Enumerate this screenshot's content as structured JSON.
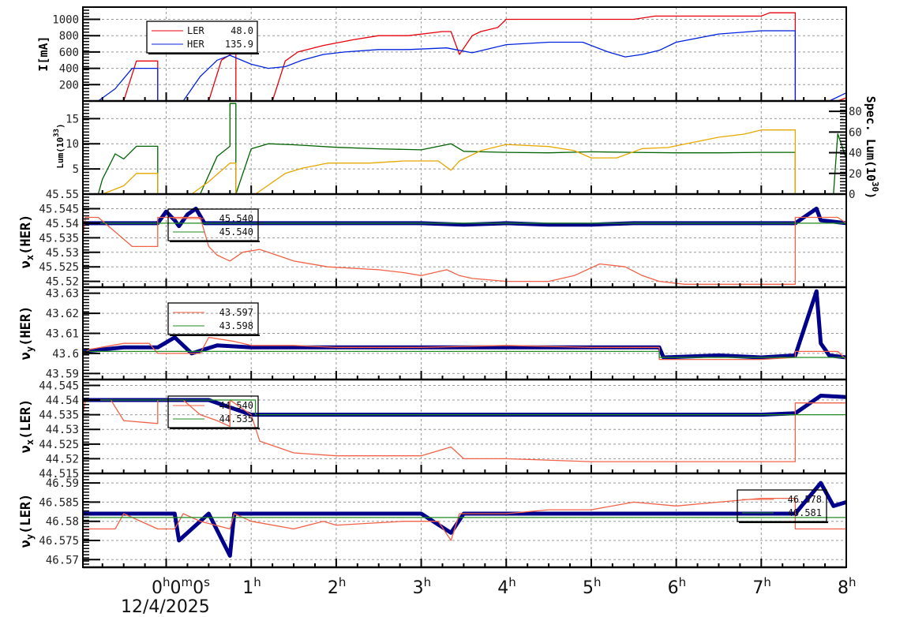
{
  "colors": {
    "ler": "#e8000b",
    "her": "#0022dd",
    "lum": "#006400",
    "spec_lum": "#e6a800",
    "tune_meas": "#00008b",
    "tune_set": "#f26247",
    "tune_ref": "#228b22",
    "grid": "#999999"
  },
  "x_axis": {
    "tick_labels": [
      "0h0m0s",
      "1h",
      "2h",
      "3h",
      "4h",
      "5h",
      "6h",
      "7h",
      "8h"
    ],
    "date_label": "12/4/2025",
    "range_hours": [
      -0.98,
      8.0
    ]
  },
  "chart_data": [
    {
      "type": "line",
      "panel": "current",
      "title": "",
      "xlabel": "time (h)",
      "ylabel": "I[mA]",
      "ylim": [
        0,
        1150
      ],
      "yticks": [
        200,
        400,
        600,
        800,
        1000
      ],
      "grid": true,
      "legend_position": "top-left",
      "legend": [
        {
          "name": "LER",
          "value": "48.0"
        },
        {
          "name": "HER",
          "value": "135.9"
        }
      ],
      "series": [
        {
          "name": "LER",
          "x": [
            -0.98,
            -0.95,
            -0.5,
            -0.35,
            -0.1,
            -0.1,
            0.5,
            0.65,
            0.8,
            0.82,
            0.82,
            1.25,
            1.4,
            1.55,
            1.85,
            2.2,
            2.5,
            2.85,
            3.25,
            3.35,
            3.45,
            3.6,
            3.7,
            3.9,
            4.0,
            4.5,
            5.0,
            5.5,
            5.75,
            5.9,
            6.0,
            6.2,
            6.3,
            6.5,
            7.0,
            7.1,
            7.4,
            7.4,
            7.9,
            8.0
          ],
          "values": [
            0,
            0,
            0,
            490,
            490,
            0,
            0,
            500,
            600,
            640,
            0,
            0,
            490,
            600,
            680,
            750,
            800,
            800,
            850,
            850,
            570,
            800,
            850,
            900,
            1000,
            1000,
            1000,
            1000,
            1040,
            1040,
            1040,
            1040,
            1040,
            1040,
            1040,
            1080,
            1080,
            0,
            0,
            40
          ]
        },
        {
          "name": "HER",
          "x": [
            -0.98,
            -0.8,
            -0.6,
            -0.4,
            -0.1,
            -0.1,
            0.2,
            0.4,
            0.6,
            0.75,
            1.0,
            1.2,
            1.4,
            1.6,
            1.85,
            2.1,
            2.5,
            2.85,
            3.3,
            3.4,
            3.6,
            3.8,
            4.0,
            4.5,
            4.9,
            5.2,
            5.4,
            5.6,
            5.8,
            6.0,
            6.4,
            6.5,
            7.0,
            7.4,
            7.4,
            7.8,
            8.0
          ],
          "values": [
            0,
            0,
            150,
            400,
            400,
            0,
            0,
            300,
            500,
            560,
            450,
            400,
            420,
            500,
            570,
            600,
            630,
            630,
            650,
            630,
            590,
            640,
            690,
            720,
            720,
            600,
            540,
            570,
            620,
            720,
            800,
            820,
            860,
            860,
            0,
            0,
            100
          ]
        }
      ]
    },
    {
      "type": "line",
      "panel": "luminosity",
      "ylabel": "Lum(10^33)",
      "ylim": [
        0,
        18.5
      ],
      "yticks": [
        5,
        10,
        15
      ],
      "y2label": "Spec. Lum(10^30)",
      "y2lim": [
        0,
        90
      ],
      "y2ticks": [
        0,
        20,
        40,
        60,
        80
      ],
      "grid": true,
      "series": [
        {
          "name": "Lum",
          "axis": "left",
          "x": [
            -0.98,
            -0.8,
            -0.75,
            -0.6,
            -0.5,
            -0.35,
            -0.1,
            -0.1,
            0.4,
            0.6,
            0.75,
            0.75,
            0.82,
            0.82,
            1.0,
            1.2,
            1.5,
            2.0,
            2.5,
            3.0,
            3.35,
            3.5,
            4.0,
            4.5,
            5.0,
            5.5,
            6.0,
            6.5,
            7.0,
            7.4,
            7.4,
            7.85,
            7.9,
            8.0
          ],
          "values": [
            0,
            0,
            3,
            8,
            7,
            9.5,
            9.5,
            0,
            0,
            7.5,
            9.5,
            18,
            18,
            0,
            9,
            10,
            9.8,
            9.3,
            9,
            8.8,
            10,
            8.5,
            8.3,
            8.2,
            8.4,
            8.3,
            8.2,
            8.2,
            8.3,
            8.3,
            0,
            0,
            12,
            7
          ]
        },
        {
          "name": "Spec. Lum",
          "axis": "right",
          "x": [
            -0.98,
            -0.75,
            -0.5,
            -0.35,
            -0.1,
            -0.1,
            0.3,
            0.5,
            0.75,
            0.82,
            0.82,
            1.05,
            1.4,
            1.6,
            1.9,
            2.4,
            2.8,
            3.2,
            3.35,
            3.45,
            3.7,
            4.0,
            4.5,
            4.8,
            5.0,
            5.3,
            5.6,
            5.9,
            6.2,
            6.5,
            6.8,
            7.0,
            7.4,
            7.4,
            8.0
          ],
          "values": [
            0,
            0,
            8,
            20,
            20,
            0,
            0,
            12,
            30,
            30,
            0,
            0,
            20,
            25,
            30,
            30,
            32,
            32,
            23,
            32,
            42,
            48,
            46,
            42,
            35,
            35,
            44,
            45,
            50,
            55,
            58,
            62,
            62,
            0,
            0
          ]
        }
      ]
    },
    {
      "type": "line",
      "panel": "nu_x_HER",
      "ylabel": "νx(HER)",
      "ylim": [
        45.518,
        45.55
      ],
      "yticks": [
        45.52,
        45.525,
        45.53,
        45.535,
        45.54,
        45.545,
        45.55
      ],
      "legend": [
        {
          "name": "set",
          "value": "45.540"
        },
        {
          "name": "ref",
          "value": "45.540"
        }
      ],
      "series": [
        {
          "name": "measured",
          "x": [
            -0.98,
            -0.1,
            0.0,
            0.1,
            0.15,
            0.25,
            0.35,
            0.45,
            1.0,
            2.0,
            3.0,
            3.5,
            4.0,
            4.5,
            5.0,
            5.5,
            6.0,
            6.5,
            7.0,
            7.4,
            7.65,
            7.7,
            7.85,
            8.0
          ],
          "values": [
            45.54,
            45.54,
            45.544,
            45.541,
            45.539,
            45.543,
            45.545,
            45.54,
            45.54,
            45.54,
            45.54,
            45.5395,
            45.54,
            45.5395,
            45.5395,
            45.54,
            45.54,
            45.54,
            45.54,
            45.54,
            45.545,
            45.541,
            45.5405,
            45.54
          ]
        },
        {
          "name": "set",
          "x": [
            -0.98,
            -0.95,
            -0.8,
            -0.6,
            -0.4,
            -0.1,
            -0.1,
            0.3,
            0.4,
            0.5,
            0.6,
            0.75,
            0.9,
            1.1,
            1.3,
            1.5,
            1.9,
            2.5,
            2.8,
            3.0,
            3.3,
            3.45,
            3.6,
            4.0,
            4.5,
            4.8,
            5.1,
            5.4,
            5.6,
            5.8,
            6.1,
            6.5,
            7.0,
            7.4,
            7.4,
            7.9,
            8.0
          ],
          "values": [
            45.535,
            45.542,
            45.542,
            45.537,
            45.532,
            45.532,
            45.542,
            45.542,
            45.542,
            45.532,
            45.529,
            45.527,
            45.53,
            45.531,
            45.529,
            45.527,
            45.525,
            45.524,
            45.523,
            45.522,
            45.524,
            45.522,
            45.521,
            45.52,
            45.52,
            45.522,
            45.526,
            45.525,
            45.522,
            45.52,
            45.519,
            45.519,
            45.519,
            45.519,
            45.542,
            45.542,
            45.54
          ]
        },
        {
          "name": "ref",
          "x": [
            -0.98,
            8.0
          ],
          "values": [
            45.54,
            45.54
          ]
        }
      ]
    },
    {
      "type": "line",
      "panel": "nu_y_HER",
      "ylabel": "νy(HER)",
      "ylim": [
        43.587,
        43.633
      ],
      "yticks": [
        43.59,
        43.6,
        43.61,
        43.62,
        43.63
      ],
      "legend": [
        {
          "name": "set",
          "value": "43.597"
        },
        {
          "name": "ref",
          "value": "43.598"
        }
      ],
      "series": [
        {
          "name": "measured",
          "x": [
            -0.98,
            -0.5,
            -0.1,
            0.1,
            0.3,
            0.6,
            1.0,
            2.0,
            3.0,
            3.5,
            4.0,
            4.5,
            5.0,
            5.5,
            5.8,
            5.85,
            6.5,
            7.0,
            7.4,
            7.65,
            7.7,
            7.8,
            8.0
          ],
          "values": [
            43.601,
            43.603,
            43.603,
            43.608,
            43.6,
            43.604,
            43.603,
            43.603,
            43.603,
            43.603,
            43.603,
            43.603,
            43.603,
            43.603,
            43.603,
            43.598,
            43.599,
            43.598,
            43.599,
            43.631,
            43.605,
            43.599,
            43.598
          ]
        },
        {
          "name": "set",
          "x": [
            -0.98,
            -0.9,
            -0.5,
            -0.2,
            -0.1,
            0.4,
            0.5,
            0.8,
            1.0,
            1.5,
            2.0,
            3.0,
            4.0,
            5.0,
            5.8,
            5.8,
            6.5,
            7.0,
            7.4,
            7.4,
            7.9,
            8.0
          ],
          "values": [
            43.6,
            43.602,
            43.605,
            43.605,
            43.6,
            43.6,
            43.608,
            43.606,
            43.604,
            43.604,
            43.603,
            43.603,
            43.604,
            43.603,
            43.603,
            43.597,
            43.597,
            43.597,
            43.598,
            43.601,
            43.601,
            43.597
          ]
        },
        {
          "name": "ref",
          "x": [
            -0.98,
            5.8,
            5.8,
            8.0
          ],
          "values": [
            43.601,
            43.601,
            43.598,
            43.598
          ]
        }
      ]
    },
    {
      "type": "line",
      "panel": "nu_x_LER",
      "ylabel": "νx(LER)",
      "ylim": [
        44.515,
        44.547
      ],
      "yticks": [
        44.515,
        44.52,
        44.525,
        44.53,
        44.535,
        44.54,
        44.545
      ],
      "legend": [
        {
          "name": "set",
          "value": "44.540"
        },
        {
          "name": "ref",
          "value": "44.535"
        }
      ],
      "series": [
        {
          "name": "measured",
          "x": [
            -0.98,
            -0.1,
            0.1,
            0.5,
            1.0,
            1.05,
            2.0,
            3.0,
            4.0,
            5.0,
            6.0,
            7.0,
            7.4,
            7.7,
            8.0
          ],
          "values": [
            44.54,
            44.54,
            44.54,
            44.54,
            44.535,
            44.535,
            44.535,
            44.535,
            44.535,
            44.535,
            44.535,
            44.535,
            44.5355,
            44.5415,
            44.541
          ]
        },
        {
          "name": "set",
          "x": [
            -0.98,
            -0.95,
            -0.65,
            -0.5,
            -0.1,
            -0.1,
            0.2,
            0.4,
            0.6,
            0.75,
            0.75,
            1.0,
            1.1,
            1.3,
            1.5,
            2.0,
            3.0,
            3.35,
            3.5,
            4.0,
            5.0,
            6.0,
            7.0,
            7.4,
            7.4,
            8.0
          ],
          "values": [
            44.535,
            44.54,
            44.54,
            44.533,
            44.532,
            44.54,
            44.54,
            44.535,
            44.533,
            44.531,
            44.54,
            44.535,
            44.526,
            44.524,
            44.522,
            44.521,
            44.521,
            44.524,
            44.52,
            44.52,
            44.519,
            44.519,
            44.519,
            44.519,
            44.539,
            44.539
          ]
        },
        {
          "name": "ref",
          "x": [
            -0.98,
            1.05,
            1.05,
            8.0
          ],
          "values": [
            44.54,
            44.54,
            44.535,
            44.535
          ]
        }
      ]
    },
    {
      "type": "line",
      "panel": "nu_y_LER",
      "ylabel": "νy(LER)",
      "ylim": [
        46.568,
        46.5925
      ],
      "yticks": [
        46.57,
        46.575,
        46.58,
        46.585,
        46.59
      ],
      "legend": [
        {
          "name": "set",
          "value": "46.578"
        },
        {
          "name": "ref",
          "value": "46.581"
        }
      ],
      "series": [
        {
          "name": "measured",
          "x": [
            -0.98,
            -0.8,
            -0.5,
            -0.1,
            0.1,
            0.15,
            0.5,
            0.75,
            0.8,
            1.0,
            2.0,
            3.0,
            3.35,
            3.5,
            4.0,
            5.0,
            6.0,
            7.0,
            7.4,
            7.7,
            7.85,
            8.0
          ],
          "values": [
            46.582,
            46.582,
            46.582,
            46.582,
            46.582,
            46.575,
            46.582,
            46.571,
            46.582,
            46.582,
            46.582,
            46.582,
            46.577,
            46.582,
            46.582,
            46.582,
            46.582,
            46.582,
            46.582,
            46.59,
            46.584,
            46.585
          ]
        },
        {
          "name": "set",
          "x": [
            -0.98,
            -0.6,
            -0.5,
            -0.1,
            0.1,
            0.2,
            0.4,
            0.75,
            0.8,
            1.0,
            1.5,
            1.85,
            2.0,
            2.8,
            3.2,
            3.35,
            3.45,
            4.0,
            4.5,
            5.0,
            5.5,
            6.0,
            6.5,
            7.0,
            7.4,
            7.4,
            8.0
          ],
          "values": [
            46.578,
            46.578,
            46.582,
            46.578,
            46.578,
            46.582,
            46.58,
            46.578,
            46.582,
            46.58,
            46.578,
            46.58,
            46.579,
            46.58,
            46.58,
            46.575,
            46.582,
            46.582,
            46.583,
            46.583,
            46.585,
            46.584,
            46.585,
            46.586,
            46.586,
            46.578,
            46.578
          ]
        },
        {
          "name": "ref",
          "x": [
            -0.98,
            8.0
          ],
          "values": [
            46.581,
            46.581
          ]
        }
      ]
    }
  ],
  "panels": {
    "current": {
      "ylabel": "I[mA]",
      "legend": {
        "ler_label": "LER",
        "ler_value": "48.0",
        "her_label": "HER",
        "her_value": "135.9"
      }
    },
    "luminosity": {
      "ylabel": "Lum(10",
      "ylabel_exp": "33",
      "y2label": "Spec. Lum(10",
      "y2label_exp": "30"
    },
    "nu_x_her": {
      "ylabel_main": "ν",
      "ylabel_sub": "x",
      "ylabel_rest": "(HER)",
      "legend": {
        "v1": "45.540",
        "v2": "45.540"
      }
    },
    "nu_y_her": {
      "ylabel_main": "ν",
      "ylabel_sub": "y",
      "ylabel_rest": "(HER)",
      "legend": {
        "v1": "43.597",
        "v2": "43.598"
      }
    },
    "nu_x_ler": {
      "ylabel_main": "ν",
      "ylabel_sub": "x",
      "ylabel_rest": "(LER)",
      "legend": {
        "v1": "44.540",
        "v2": "44.535"
      }
    },
    "nu_y_ler": {
      "ylabel_main": "ν",
      "ylabel_sub": "y",
      "ylabel_rest": "(LER)",
      "legend": {
        "v1": "46.578",
        "v2": "46.581"
      }
    }
  }
}
